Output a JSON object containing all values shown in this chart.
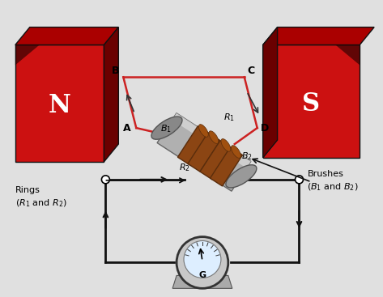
{
  "bg_color": "#e0e0e0",
  "magnet_front_color": "#cc1111",
  "magnet_top_color": "#aa0000",
  "magnet_side_color": "#6a0000",
  "magnet_dark_color": "#2a0a0a",
  "wire_color": "#cc2222",
  "circuit_color": "#111111",
  "shaft_color": "#aaaaaa",
  "shaft_light": "#cccccc",
  "shaft_dark": "#888888",
  "ring_color": "#8B4513",
  "ring_dark": "#5a2d0c",
  "galv_outer": "#aaaaaa",
  "galv_inner": "#e8f4ff",
  "N_label": "N",
  "S_label": "S",
  "rings_text": "Rings\n(R₁ and R₂)",
  "brushes_text": "Brushes\n(B₁ and B₂)"
}
